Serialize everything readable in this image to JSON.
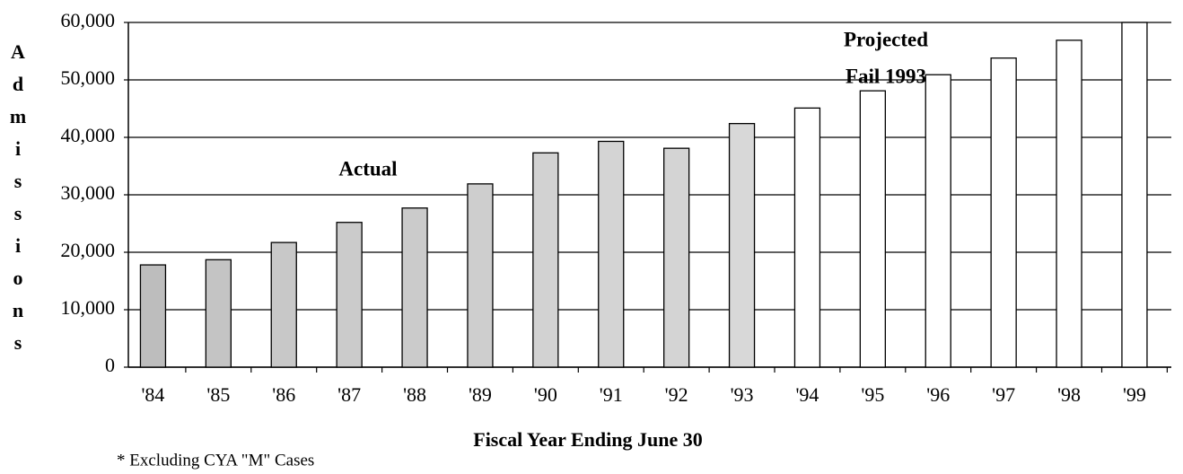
{
  "chart_data": {
    "type": "bar",
    "y_label": "Admissions",
    "x_label": "Fiscal Year Ending June 30",
    "footnote": "* Excluding CYA \"M\" Cases",
    "annotations": [
      "Actual",
      "Projected",
      "Fail 1993"
    ],
    "categories": [
      "'84",
      "'85",
      "'86",
      "'87",
      "'88",
      "'89",
      "'90",
      "'91",
      "'92",
      "'93",
      "'94",
      "'95",
      "'96",
      "'97",
      "'98",
      "'99"
    ],
    "values": [
      17800,
      18700,
      21700,
      25200,
      27700,
      31900,
      37300,
      39300,
      38100,
      42400,
      45100,
      48100,
      50900,
      53800,
      56900,
      60000
    ],
    "colors": [
      "#bdbdbd",
      "#c4c4c4",
      "#c8c8c8",
      "#cbcbcb",
      "#cbcbcb",
      "#cecece",
      "#d2d2d2",
      "#d4d4d4",
      "#d4d4d4",
      "#d8d8d8",
      "#ffffff",
      "#ffffff",
      "#ffffff",
      "#ffffff",
      "#ffffff",
      "#ffffff"
    ],
    "ylim": [
      0,
      60000
    ],
    "yticks": [
      0,
      {
        "value": 10000,
        "label": "10,000"
      },
      {
        "value": 20000,
        "label": "20,000"
      },
      {
        "value": 30000,
        "label": "30,000"
      },
      {
        "value": 40000,
        "label": "40,000"
      },
      {
        "value": 50000,
        "label": "50,000"
      },
      {
        "value": 60000,
        "label": "60,000"
      }
    ],
    "grid": true
  }
}
